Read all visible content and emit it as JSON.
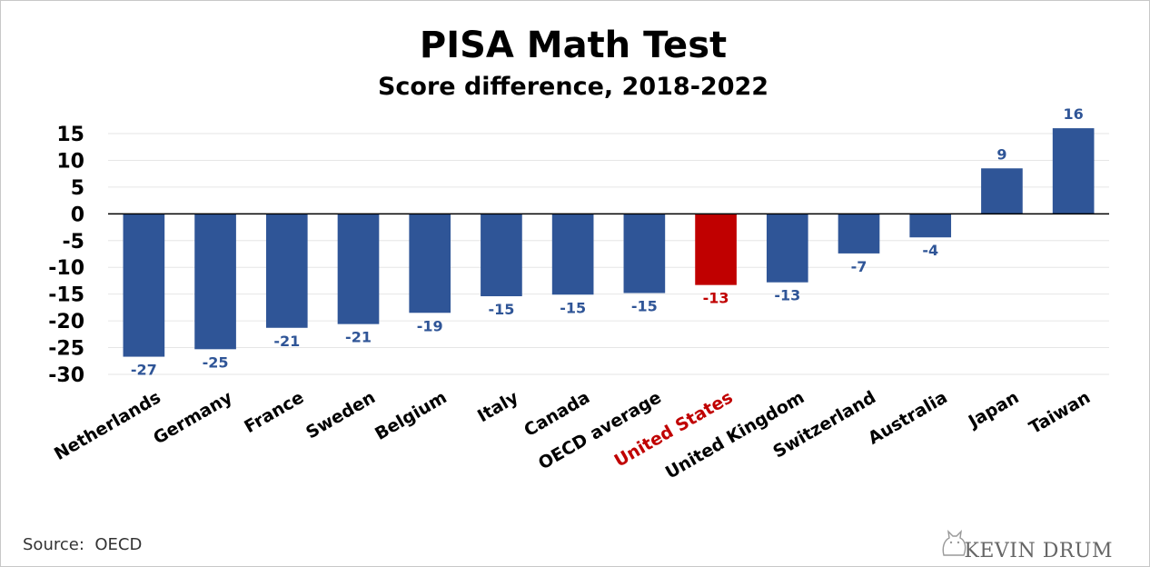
{
  "chart_data": {
    "type": "bar",
    "title": "PISA Math Test",
    "subtitle": "Score difference, 2018-2022",
    "xlabel": "",
    "ylabel": "",
    "categories": [
      "Netherlands",
      "Germany",
      "France",
      "Sweden",
      "Belgium",
      "Italy",
      "Canada",
      "OECD average",
      "United States",
      "United Kingdom",
      "Switzerland",
      "Australia",
      "Japan",
      "Taiwan"
    ],
    "values": [
      -26.7,
      -25.3,
      -21.3,
      -20.6,
      -18.5,
      -15.4,
      -15.1,
      -14.8,
      -13.3,
      -12.8,
      -7.4,
      -4.4,
      8.5,
      16
    ],
    "data_labels": [
      "-27",
      "-25",
      "-21",
      "-21",
      "-19",
      "-15",
      "-15",
      "-15",
      "-13",
      "-13",
      "-7",
      "-4",
      "9",
      "16"
    ],
    "ylim": [
      -30,
      15
    ],
    "yticks": [
      15,
      10,
      5,
      0,
      -5,
      -10,
      -15,
      -20,
      -25,
      -30
    ],
    "grid": true,
    "highlight_category": "United States",
    "colors": {
      "bar": "#2f5597",
      "highlight": "#c00000",
      "label": "#2f5597",
      "highlight_label": "#c00000"
    }
  },
  "footer": {
    "source": "Source:  OECD",
    "brand": "KEVIN DRUM",
    "brand_icon": "cat-logo-icon"
  }
}
